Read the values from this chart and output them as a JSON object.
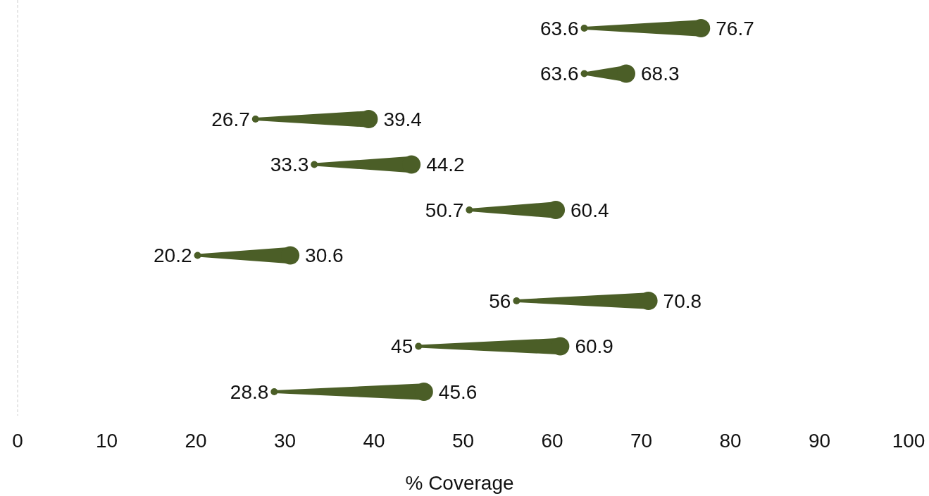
{
  "chart_data": {
    "type": "scatter",
    "orientation": "horizontal",
    "xlabel": "% Coverage",
    "categories": [
      null,
      null,
      null,
      null,
      null,
      null,
      null,
      null,
      null
    ],
    "series": [
      {
        "color": "#4b5e27",
        "marker": "circle",
        "values": [
          63.6,
          63.6,
          26.7,
          33.3,
          50.7,
          20.2,
          56,
          45,
          28.8
        ]
      },
      {
        "color": "#4b5e27",
        "marker": "circle",
        "values": [
          76.7,
          68.3,
          39.4,
          44.2,
          60.4,
          30.6,
          70.8,
          60.9,
          45.6
        ]
      }
    ],
    "xlim": [
      0,
      100
    ],
    "xticks": [
      0,
      10,
      20,
      30,
      40,
      50,
      60,
      70,
      80,
      90,
      100
    ],
    "grid": false,
    "data_labels": true,
    "tick_labels": "x"
  }
}
